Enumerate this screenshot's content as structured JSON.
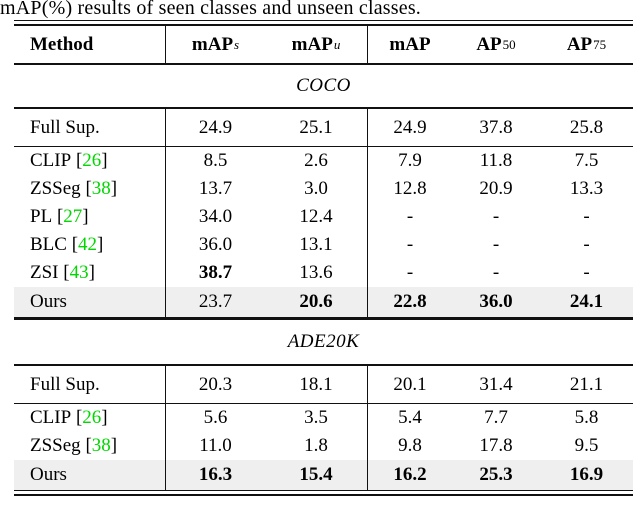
{
  "caption": "mAP(%) results of seen classes and unseen classes.",
  "header": {
    "method_label": "Method",
    "columns": [
      {
        "base": "mAP",
        "sup": "s",
        "sup_italic": true
      },
      {
        "base": "mAP",
        "sup": "u",
        "sup_italic": true
      },
      {
        "base": "mAP",
        "sup": "",
        "sup_italic": false
      },
      {
        "base": "AP",
        "sup": "50",
        "sup_italic": false
      },
      {
        "base": "AP",
        "sup": "75",
        "sup_italic": false
      }
    ]
  },
  "sections": [
    {
      "title": "COCO",
      "rows": [
        {
          "method": "Full Sup.",
          "cite": null,
          "values": [
            "24.9",
            "25.1",
            "24.9",
            "37.8",
            "25.8"
          ],
          "bold": [
            false,
            false,
            false,
            false,
            false
          ],
          "shaded": false,
          "rule_after": true
        },
        {
          "method": "CLIP",
          "cite": "26",
          "values": [
            "8.5",
            "2.6",
            "7.9",
            "11.8",
            "7.5"
          ],
          "bold": [
            false,
            false,
            false,
            false,
            false
          ],
          "shaded": false,
          "rule_after": false
        },
        {
          "method": "ZSSeg",
          "cite": "38",
          "values": [
            "13.7",
            "3.0",
            "12.8",
            "20.9",
            "13.3"
          ],
          "bold": [
            false,
            false,
            false,
            false,
            false
          ],
          "shaded": false,
          "rule_after": false
        },
        {
          "method": "PL",
          "cite": "27",
          "values": [
            "34.0",
            "12.4",
            "-",
            "-",
            "-"
          ],
          "bold": [
            false,
            false,
            false,
            false,
            false
          ],
          "shaded": false,
          "rule_after": false
        },
        {
          "method": "BLC",
          "cite": "42",
          "values": [
            "36.0",
            "13.1",
            "-",
            "-",
            "-"
          ],
          "bold": [
            false,
            false,
            false,
            false,
            false
          ],
          "shaded": false,
          "rule_after": false
        },
        {
          "method": "ZSI",
          "cite": "43",
          "values": [
            "38.7",
            "13.6",
            "-",
            "-",
            "-"
          ],
          "bold": [
            true,
            false,
            false,
            false,
            false
          ],
          "shaded": false,
          "rule_after": false
        },
        {
          "method": "Ours",
          "cite": null,
          "values": [
            "23.7",
            "20.6",
            "22.8",
            "36.0",
            "24.1"
          ],
          "bold": [
            false,
            true,
            true,
            true,
            true
          ],
          "shaded": true,
          "rule_after": false
        }
      ]
    },
    {
      "title": "ADE20K",
      "rows": [
        {
          "method": "Full Sup.",
          "cite": null,
          "values": [
            "20.3",
            "18.1",
            "20.1",
            "31.4",
            "21.1"
          ],
          "bold": [
            false,
            false,
            false,
            false,
            false
          ],
          "shaded": false,
          "rule_after": true
        },
        {
          "method": "CLIP",
          "cite": "26",
          "values": [
            "5.6",
            "3.5",
            "5.4",
            "7.7",
            "5.8"
          ],
          "bold": [
            false,
            false,
            false,
            false,
            false
          ],
          "shaded": false,
          "rule_after": false
        },
        {
          "method": "ZSSeg",
          "cite": "38",
          "values": [
            "11.0",
            "1.8",
            "9.8",
            "17.8",
            "9.5"
          ],
          "bold": [
            false,
            false,
            false,
            false,
            false
          ],
          "shaded": false,
          "rule_after": false
        },
        {
          "method": "Ours",
          "cite": null,
          "values": [
            "16.3",
            "15.4",
            "16.2",
            "25.3",
            "16.9"
          ],
          "bold": [
            true,
            true,
            true,
            true,
            true
          ],
          "shaded": true,
          "rule_after": false
        }
      ]
    }
  ],
  "colors": {
    "citation_green": "#00d600",
    "shaded_row_bg": "#efefef",
    "rule_black": "#111111"
  }
}
